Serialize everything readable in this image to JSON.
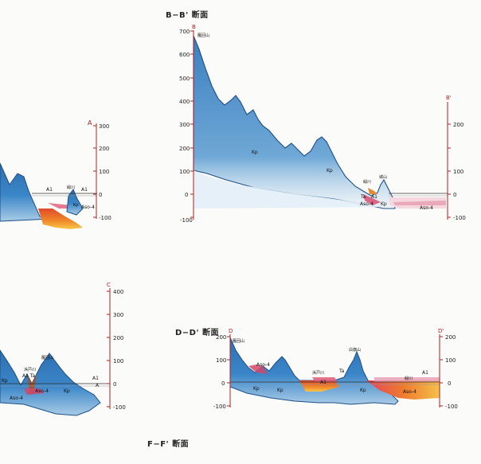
{
  "titles": {
    "bb": "B−B' 断面",
    "dd": "D−D' 断面",
    "ff": "F−F' 断面"
  },
  "panel_a": {
    "end_label": "A",
    "ticks": [
      "300",
      "200",
      "100",
      "0",
      "-100"
    ],
    "labels": {
      "al_left": "A1",
      "river": "緑川",
      "al_right": "A1",
      "aso4": "Aso-4",
      "kp": "Kp"
    }
  },
  "panel_b": {
    "start_label": "B",
    "end_label": "B'",
    "left_ticks": [
      "700",
      "600",
      "500",
      "400",
      "300",
      "200",
      "100",
      "0",
      "-100"
    ],
    "right_ticks": [
      "200",
      "100",
      "0",
      "-100"
    ],
    "labels": {
      "peak": "雁回山",
      "small_peak": "城山",
      "river": "緑川",
      "kp1": "Kp",
      "kp2": "Kp",
      "ta": "Ta",
      "al": "A1",
      "aso4a": "Aso-4",
      "aso4b": "Aso-4",
      "kp3": "Kp"
    }
  },
  "panel_c": {
    "end_label": "C",
    "ticks": [
      "400",
      "300",
      "200",
      "100",
      "0",
      "-100"
    ],
    "labels": {
      "peak": "雁回山",
      "river": "浜戸川",
      "al_ta": "A1 Ta",
      "aso4": "Aso-4",
      "aso4b": "Aso-4",
      "kp_left": "Kp",
      "kp_right": "Kp",
      "al_right": "A1",
      "a_right": "A"
    }
  },
  "panel_d": {
    "start_label": "D",
    "end_label": "D'",
    "left_ticks": [
      "200",
      "100",
      "0",
      "-100"
    ],
    "right_ticks": [
      "200",
      "100",
      "0",
      "-100"
    ],
    "labels": {
      "peak_left": "雁回山",
      "aso4": "Aso-4",
      "river": "浜戸川",
      "ta": "Ta",
      "peak_mid": "白旗山",
      "kp1": "Kp",
      "kp2": "Kp",
      "kp3": "Kp",
      "river2": "緑川",
      "al": "A1",
      "al2": "A1",
      "aso4b": "Aso-4"
    }
  }
}
